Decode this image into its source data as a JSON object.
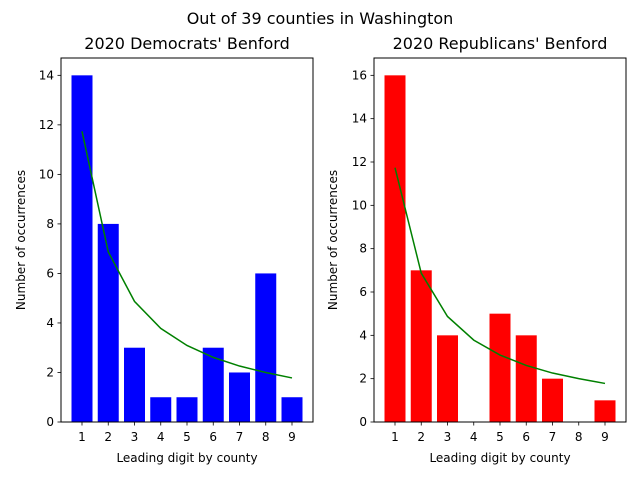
{
  "suptitle": "Out of 39 counties in Washington",
  "chart_data": [
    {
      "type": "bar",
      "title": "2020 Democrats' Benford",
      "xlabel": "Leading digit by county",
      "ylabel": "Number of occurrences",
      "categories": [
        "1",
        "2",
        "3",
        "4",
        "5",
        "6",
        "7",
        "8",
        "9"
      ],
      "ylim": [
        0,
        14.7
      ],
      "yticks": [
        0,
        2,
        4,
        6,
        8,
        10,
        12,
        14
      ],
      "grid": false,
      "series": [
        {
          "type": "bar",
          "color": "#0000ff",
          "values": [
            14,
            8,
            3,
            1,
            1,
            3,
            2,
            6,
            1
          ]
        },
        {
          "type": "line",
          "color": "#008000",
          "values": [
            11.74,
            6.87,
            4.87,
            3.78,
            3.09,
            2.61,
            2.26,
            2.0,
            1.78
          ]
        }
      ]
    },
    {
      "type": "bar",
      "title": "2020 Republicans' Benford",
      "xlabel": "Leading digit by county",
      "ylabel": "Number of occurrences",
      "categories": [
        "1",
        "2",
        "3",
        "4",
        "5",
        "6",
        "7",
        "8",
        "9"
      ],
      "ylim": [
        0,
        16.8
      ],
      "yticks": [
        0,
        2,
        4,
        6,
        8,
        10,
        12,
        14,
        16
      ],
      "grid": false,
      "series": [
        {
          "type": "bar",
          "color": "#ff0000",
          "values": [
            16,
            7,
            4,
            0,
            5,
            4,
            2,
            0,
            1
          ]
        },
        {
          "type": "line",
          "color": "#008000",
          "values": [
            11.74,
            6.87,
            4.87,
            3.78,
            3.09,
            2.61,
            2.26,
            2.0,
            1.78
          ]
        }
      ]
    }
  ]
}
